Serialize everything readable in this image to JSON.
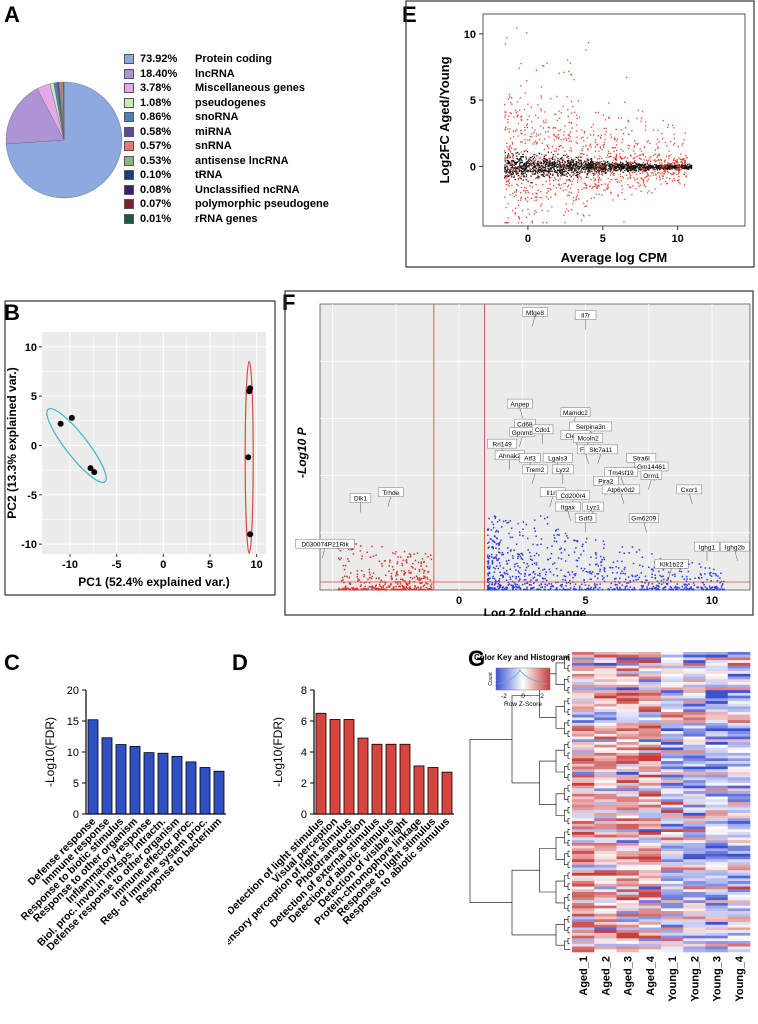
{
  "panels": {
    "A": "A",
    "B": "B",
    "C": "C",
    "D": "D",
    "E": "E",
    "F": "F",
    "G": "G"
  },
  "chart_data": [
    {
      "id": "A",
      "type": "pie",
      "slices": [
        {
          "pct": "73.92%",
          "label": "Protein coding",
          "value": 73.92,
          "color": "#8da9dd"
        },
        {
          "pct": "18.40%",
          "label": "lncRNA",
          "value": 18.4,
          "color": "#ad94d6"
        },
        {
          "pct": "3.78%",
          "label": "Miscellaneous genes",
          "value": 3.78,
          "color": "#e6a8e8"
        },
        {
          "pct": "1.08%",
          "label": "pseudogenes",
          "value": 1.08,
          "color": "#c6ebb4"
        },
        {
          "pct": "0.86%",
          "label": "snoRNA",
          "value": 0.86,
          "color": "#4a7fc1"
        },
        {
          "pct": "0.58%",
          "label": "miRNA",
          "value": 0.58,
          "color": "#5b4a9e"
        },
        {
          "pct": "0.57%",
          "label": "snRNA",
          "value": 0.57,
          "color": "#e47878"
        },
        {
          "pct": "0.53%",
          "label": "antisense lncRNA",
          "value": 0.53,
          "color": "#90b484"
        },
        {
          "pct": "0.10%",
          "label": "tRNA",
          "value": 0.1,
          "color": "#1a3d7c"
        },
        {
          "pct": "0.08%",
          "label": "Unclassified ncRNA",
          "value": 0.08,
          "color": "#3a1f6e"
        },
        {
          "pct": "0.07%",
          "label": "polymorphic pseudogene",
          "value": 0.07,
          "color": "#7a1f3a"
        },
        {
          "pct": "0.01%",
          "label": "rRNA genes",
          "value": 0.01,
          "color": "#1f5a3a"
        }
      ]
    },
    {
      "id": "B",
      "type": "scatter",
      "xlabel": "PC1 (52.4% explained var.)",
      "ylabel": "PC2 (13.3% explained var.)",
      "xlim": [
        -13,
        11
      ],
      "ylim": [
        -11,
        11.5
      ],
      "xticks": [
        -10,
        -5,
        0,
        5,
        10
      ],
      "yticks": [
        -10,
        -5,
        0,
        5,
        10
      ],
      "series": [
        {
          "points": [
            [
              -11,
              2.2
            ],
            [
              -9.8,
              2.8
            ],
            [
              -7.8,
              -2.3
            ],
            [
              -7.4,
              -2.7
            ]
          ],
          "color": "#38b7c8"
        },
        {
          "points": [
            [
              9.2,
              5.5
            ],
            [
              9.3,
              5.8
            ],
            [
              9.1,
              -1.2
            ],
            [
              9.3,
              -9.0
            ]
          ],
          "color": "#d84b3e"
        }
      ]
    },
    {
      "id": "C",
      "type": "bar",
      "ylabel": "-Log10(FDR)",
      "ylim": [
        0,
        20
      ],
      "yticks": [
        0,
        5,
        10,
        15,
        20
      ],
      "color": "#2f4fc4",
      "categories": [
        "Defense response",
        "Immune response",
        "Response to biotic stimulus",
        "Response to other organism",
        "Inflammatory response",
        "Biol. proc. invol.in intrsps. intractn.",
        "Defense response to other organism",
        "Immune effector proc.",
        "Reg. of immune system proc.",
        "Response to bacterium"
      ],
      "values": [
        15.2,
        12.3,
        11.2,
        10.9,
        9.9,
        9.8,
        9.3,
        8.4,
        7.5,
        6.9
      ]
    },
    {
      "id": "D",
      "type": "bar",
      "ylabel": "-Log10(FDR)",
      "ylim": [
        0,
        8
      ],
      "yticks": [
        0,
        2,
        4,
        6,
        8
      ],
      "color": "#d8453e",
      "categories": [
        "Detection of light stimulus",
        "Visual perception",
        "Sensory perception of light stimulus",
        "Phototransduction",
        "Detection of external stimulus",
        "Detection of abiotic stimulus",
        "Detection of visible light",
        "Protein-chromophore linkage",
        "Response to light stimulus",
        "Response to abiotic stimulus"
      ],
      "values": [
        6.5,
        6.1,
        6.1,
        4.9,
        4.5,
        4.5,
        4.5,
        3.1,
        3.0,
        2.7
      ]
    },
    {
      "id": "E",
      "type": "scatter",
      "xlabel": "Average log CPM",
      "ylabel": "Log2FC Aged/Young",
      "xlim": [
        -3,
        14.5
      ],
      "ylim": [
        -4.5,
        11.5
      ],
      "xticks": [
        0,
        5,
        10
      ],
      "yticks": [
        0,
        5,
        10
      ]
    },
    {
      "id": "F",
      "type": "scatter",
      "xlabel": "Log 2 fold change",
      "ylabel": "-Log10 P",
      "xlim": [
        -5.5,
        11.5
      ],
      "xticks": [
        0,
        5,
        10
      ],
      "vlines": [
        -1,
        1
      ],
      "gene_labels": [
        {
          "t": "Mfge8",
          "x": 3.0,
          "y": 0.97
        },
        {
          "t": "Il7r",
          "x": 5.0,
          "y": 0.96
        },
        {
          "t": "Anpep",
          "x": 2.4,
          "y": 0.65
        },
        {
          "t": "Mamdc2",
          "x": 4.6,
          "y": 0.62
        },
        {
          "t": "Cd68",
          "x": 2.6,
          "y": 0.58
        },
        {
          "t": "Serpina3n",
          "x": 5.2,
          "y": 0.57
        },
        {
          "t": "Gpnmb",
          "x": 2.5,
          "y": 0.55
        },
        {
          "t": "Cdo1",
          "x": 3.3,
          "y": 0.56
        },
        {
          "t": "Clec4d",
          "x": 4.6,
          "y": 0.54
        },
        {
          "t": "Mcoln2",
          "x": 5.1,
          "y": 0.53
        },
        {
          "t": "Rrl149",
          "x": 1.7,
          "y": 0.51
        },
        {
          "t": "Fab",
          "x": 5.0,
          "y": 0.49
        },
        {
          "t": "Slc7a11",
          "x": 5.6,
          "y": 0.49
        },
        {
          "t": "Ahnak2",
          "x": 2.0,
          "y": 0.47
        },
        {
          "t": "Atf3",
          "x": 2.8,
          "y": 0.46
        },
        {
          "t": "Lgals3",
          "x": 3.9,
          "y": 0.46
        },
        {
          "t": "Stra6l",
          "x": 7.2,
          "y": 0.46
        },
        {
          "t": "Gm14461",
          "x": 7.6,
          "y": 0.43
        },
        {
          "t": "Trem2",
          "x": 3.0,
          "y": 0.42
        },
        {
          "t": "Lyz2",
          "x": 4.1,
          "y": 0.42
        },
        {
          "t": "Tm4sf19",
          "x": 6.4,
          "y": 0.41
        },
        {
          "t": "Orm1",
          "x": 7.6,
          "y": 0.4
        },
        {
          "t": "Pira2",
          "x": 5.8,
          "y": 0.38
        },
        {
          "t": "Atp6v0d2",
          "x": 6.4,
          "y": 0.35
        },
        {
          "t": "Il1rn",
          "x": 3.7,
          "y": 0.34
        },
        {
          "t": "Cd200r4",
          "x": 4.5,
          "y": 0.33
        },
        {
          "t": "Cxcr1",
          "x": 9.1,
          "y": 0.35
        },
        {
          "t": "Trhde",
          "x": -2.7,
          "y": 0.34
        },
        {
          "t": "Dlk1",
          "x": -3.9,
          "y": 0.32
        },
        {
          "t": "Itgax",
          "x": 4.3,
          "y": 0.29
        },
        {
          "t": "Lyz1",
          "x": 5.3,
          "y": 0.29
        },
        {
          "t": "Gdf3",
          "x": 5.0,
          "y": 0.25
        },
        {
          "t": "Gm6209",
          "x": 7.3,
          "y": 0.25
        },
        {
          "t": "D030074P21Rik",
          "x": -5.3,
          "y": 0.16
        },
        {
          "t": "Ighg1",
          "x": 9.8,
          "y": 0.15
        },
        {
          "t": "Ighg2b",
          "x": 10.9,
          "y": 0.15
        },
        {
          "t": "Klk1b22",
          "x": 8.4,
          "y": 0.09
        }
      ]
    },
    {
      "id": "G",
      "type": "heatmap",
      "colorkey_title": "Color Key and Histogram",
      "colorkey_label": "Row Z-Score",
      "colorkey_ticks": [
        "-2",
        "0",
        "2"
      ],
      "colorkey_ylabel": "Count",
      "columns": [
        "Aged_1",
        "Aged_2",
        "Aged_3",
        "Aged_4",
        "Young_1",
        "Young_2",
        "Young_3",
        "Young_4"
      ]
    }
  ]
}
